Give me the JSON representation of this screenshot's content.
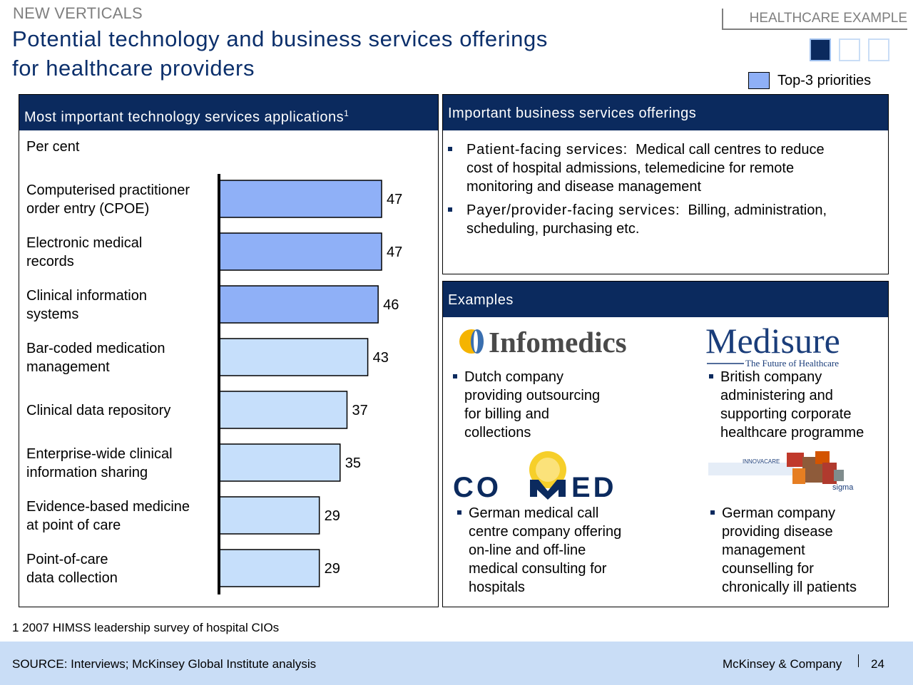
{
  "header": {
    "section": "NEW VERTICALS",
    "title_line1": "Potential technology and business services offerings",
    "title_line2": "for healthcare providers",
    "tag": "HEALTHCARE EXAMPLE",
    "legend_label": "Top-3 priorities",
    "legend_color": "#8fb0f7"
  },
  "left_panel": {
    "heading": "Most important technology services applications",
    "heading_sup": "1",
    "unit": "Per cent"
  },
  "chart_data": {
    "type": "bar",
    "orientation": "horizontal",
    "categories": [
      [
        "Computerised practitioner",
        "order entry (CPOE)"
      ],
      [
        "Electronic medical",
        "records"
      ],
      [
        "Clinical information",
        "systems"
      ],
      [
        "Bar-coded medication",
        "management"
      ],
      [
        "Clinical data repository"
      ],
      [
        "Enterprise-wide clinical",
        "information sharing"
      ],
      [
        "Evidence-based medicine",
        "at point of care"
      ],
      [
        "Point-of-care",
        "data collection"
      ]
    ],
    "values": [
      47,
      47,
      46,
      43,
      37,
      35,
      29,
      29
    ],
    "top3": [
      true,
      true,
      true,
      false,
      false,
      false,
      false,
      false
    ],
    "colors": {
      "top3": "#8fb0f7",
      "other": "#c6dffb"
    },
    "ylabel": "Per cent",
    "xlim": [
      0,
      47
    ]
  },
  "business_panel": {
    "heading": "Important business services offerings",
    "bullets": [
      {
        "lead": "Patient-facing services:",
        "text_line1": "Medical call centres to reduce",
        "text_line2": "cost of hospital admissions, telemedicine for remote",
        "text_line3": "monitoring and disease management"
      },
      {
        "lead": "Payer/provider-facing services:",
        "text_line1": "Billing, administration,",
        "text_line2": "scheduling, purchasing etc."
      }
    ]
  },
  "examples_panel": {
    "heading": "Examples",
    "infomedics": {
      "logo": "Infomedics",
      "lines": [
        "Dutch company",
        "providing outsourcing",
        "for billing and",
        "collections"
      ]
    },
    "medisure": {
      "logo": "Medisure",
      "tagline": "The Future of Healthcare",
      "lines": [
        "British company",
        "administering and",
        "supporting corporate",
        "healthcare programme"
      ]
    },
    "comed": {
      "logo_left": "CO",
      "logo_right": "ED",
      "lines": [
        "German medical call",
        "centre company offering",
        "on-line and off-line",
        "medical consulting for",
        "hospitals"
      ]
    },
    "innovacare": {
      "logo": "INNOVACARE",
      "sub": "sigma",
      "lines": [
        "German company",
        "providing disease",
        "management",
        "counselling for",
        "chronically ill patients"
      ]
    }
  },
  "footer": {
    "footnote": "1 2007 HIMSS leadership survey of hospital CIOs",
    "source": "SOURCE: Interviews; McKinsey Global Institute analysis",
    "brand": "McKinsey & Company",
    "page": "24",
    "bar_color": "#c9ddf6"
  }
}
